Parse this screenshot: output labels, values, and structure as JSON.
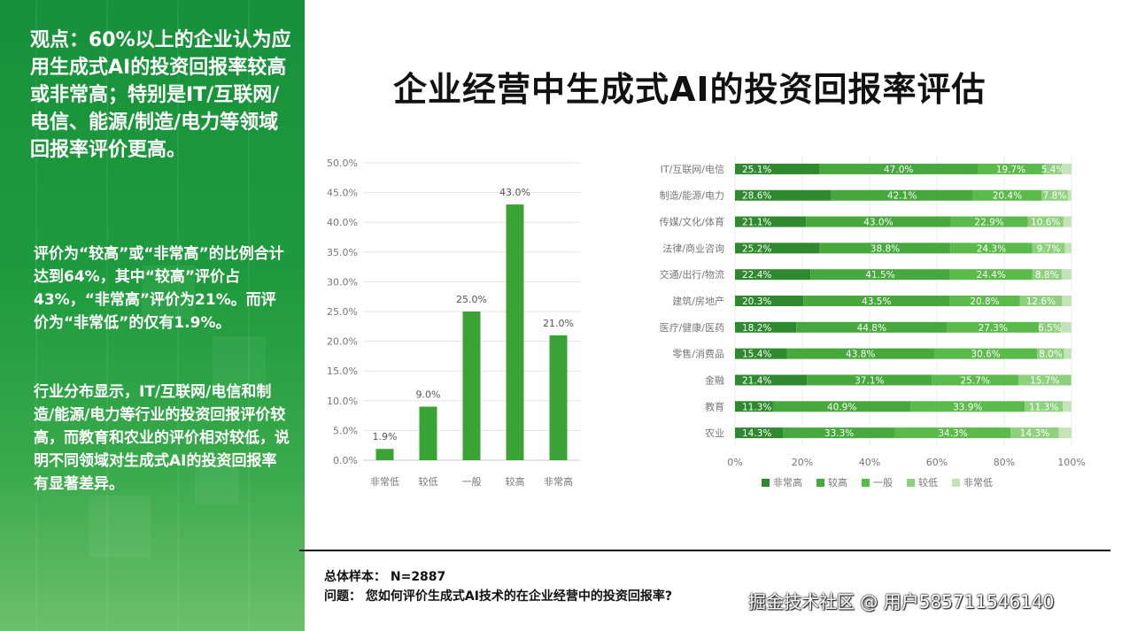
{
  "sidebar": {
    "viewpoint": "观点：60%以上的企业认为应用生成式AI的投资回报率较高或非常高；特别是IT/互联网/电信、能源/制造/电力等领域回报率评价更高。",
    "desc1": "评价为“较高”或“非常高”的比例合计达到64%，其中“较高”评价占43%，“非常高”评价为21%。而评价为“非常低”的仅有1.9%。",
    "desc2": "行业分布显示，IT/互联网/电信和制造/能源/电力等行业的投资回报评价较高，而教育和农业的评价相对较低，说明不同领域对生成式AI的投资回报率有显著差异。"
  },
  "title": "企业经营中生成式AI的投资回报率评估",
  "footer": {
    "sample": "总体样本：  N=2887",
    "question": "问题：  您如何评价生成式AI技术的在企业经营中的投资回报率?"
  },
  "watermark": "掘金技术社区 @ 用户585711546140",
  "chart_data": [
    {
      "type": "bar",
      "categories": [
        "非常低",
        "较低",
        "一般",
        "较高",
        "非常高"
      ],
      "values": [
        1.9,
        9.0,
        25.0,
        43.0,
        21.0
      ],
      "value_labels": [
        "1.9%",
        "9.0%",
        "25.0%",
        "43.0%",
        "21.0%"
      ],
      "ylim": [
        0,
        50
      ],
      "yticks": [
        "0.0%",
        "5.0%",
        "10.0%",
        "15.0%",
        "20.0%",
        "25.0%",
        "30.0%",
        "35.0%",
        "40.0%",
        "45.0%",
        "50.0%"
      ],
      "grid": true,
      "color": "#3aa335"
    },
    {
      "type": "bar",
      "orientation": "horizontal",
      "stacked": true,
      "categories": [
        "IT/互联网/电信",
        "制造/能源/电力",
        "传媒/文化/体育",
        "法律/商业咨询",
        "交通/出行/物流",
        "建筑/房地产",
        "医疗/健康/医药",
        "零售/消费品",
        "金融",
        "教育",
        "农业"
      ],
      "series": [
        {
          "name": "非常高",
          "color": "#2f8a2f",
          "values": [
            25.1,
            28.6,
            21.1,
            25.2,
            22.4,
            20.3,
            18.2,
            15.4,
            21.4,
            11.3,
            14.3
          ]
        },
        {
          "name": "较高",
          "color": "#47a83d",
          "values": [
            47.0,
            42.1,
            43.0,
            38.8,
            41.5,
            43.5,
            44.8,
            43.8,
            37.1,
            40.9,
            33.3
          ]
        },
        {
          "name": "一般",
          "color": "#5bbb4a",
          "values": [
            19.7,
            20.4,
            22.9,
            24.3,
            24.4,
            20.8,
            27.3,
            30.6,
            25.7,
            33.9,
            34.3
          ]
        },
        {
          "name": "较低",
          "color": "#8ed07d",
          "values": [
            5.4,
            7.8,
            10.6,
            9.7,
            8.8,
            12.6,
            6.5,
            8.0,
            15.7,
            11.3,
            14.3
          ]
        },
        {
          "name": "非常低",
          "color": "#c4e3b8",
          "values": [
            2.8,
            1.1,
            2.4,
            2.0,
            2.9,
            2.8,
            3.2,
            2.2,
            0.1,
            2.6,
            3.8
          ]
        }
      ],
      "labels": [
        [
          "25.1%",
          "47.0%",
          "19.7%",
          "5.4%"
        ],
        [
          "28.6%",
          "42.1%",
          "20.4%",
          "7.8%"
        ],
        [
          "21.1%",
          "43.0%",
          "22.9%",
          "10.6%"
        ],
        [
          "25.2%",
          "38.8%",
          "24.3%",
          "9.7%"
        ],
        [
          "22.4%",
          "41.5%",
          "24.4%",
          "8.8%"
        ],
        [
          "20.3%",
          "43.5%",
          "20.8%",
          "12.6%"
        ],
        [
          "18.2%",
          "44.8%",
          "27.3%",
          "6.5%"
        ],
        [
          "15.4%",
          "43.8%",
          "30.6%",
          "8.0%"
        ],
        [
          "21.4%",
          "37.1%",
          "25.7%",
          "15.7%"
        ],
        [
          "11.3%",
          "40.9%",
          "33.9%",
          "11.3%"
        ],
        [
          "14.3%",
          "33.3%",
          "34.3%",
          "14.3%"
        ]
      ],
      "xlim": [
        0,
        100
      ],
      "xticks": [
        "0%",
        "20%",
        "40%",
        "60%",
        "80%",
        "100%"
      ],
      "legend_position": "bottom"
    }
  ]
}
